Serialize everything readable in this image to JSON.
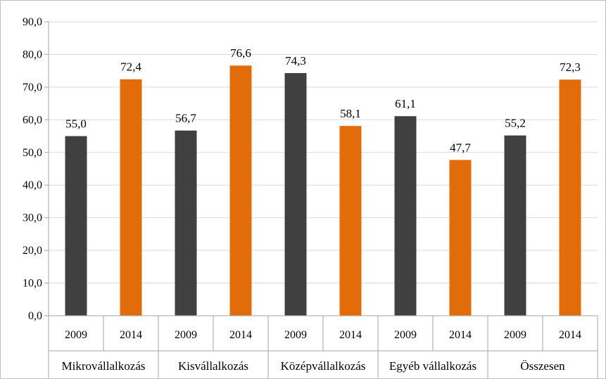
{
  "chart_data": {
    "type": "bar",
    "title": "",
    "xlabel": "",
    "ylabel": "",
    "ylim": [
      0,
      90
    ],
    "yticks": [
      "0,0",
      "10,0",
      "20,0",
      "30,0",
      "40,0",
      "50,0",
      "60,0",
      "70,0",
      "80,0",
      "90,0"
    ],
    "ytick_values": [
      0,
      10,
      20,
      30,
      40,
      50,
      60,
      70,
      80,
      90
    ],
    "grid": true,
    "legend": "none",
    "groups": [
      "Mikrovállalkozás",
      "Kisvállalkozás",
      "Középvállalkozás",
      "Egyéb vállalkozás",
      "Összesen"
    ],
    "categories": [
      "2009",
      "2014",
      "2009",
      "2014",
      "2009",
      "2014",
      "2009",
      "2014",
      "2009",
      "2014"
    ],
    "values": [
      55.0,
      72.4,
      56.7,
      76.6,
      74.3,
      58.1,
      61.1,
      47.7,
      55.2,
      72.3
    ],
    "value_labels": [
      "55,0",
      "72,4",
      "56,7",
      "76,6",
      "74,3",
      "58,1",
      "61,1",
      "47,7",
      "55,2",
      "72,3"
    ],
    "colors": {
      "2009": "#404040",
      "2014": "#e36c0a"
    },
    "gridline_color": "#d9d9d9",
    "axis_color": "#a6a6a6"
  }
}
